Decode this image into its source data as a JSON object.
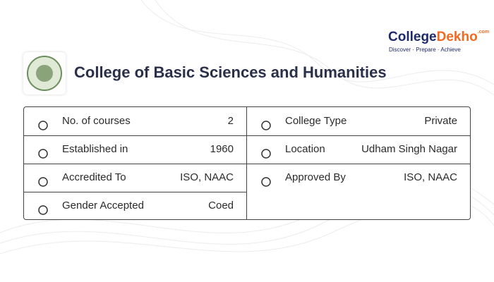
{
  "brand": {
    "name_a": "College",
    "name_b": "Dekho",
    "suffix": ".com",
    "tagline": "Discover · Prepare · Achieve"
  },
  "title": "College of Basic Sciences and Humanities",
  "table": {
    "left": [
      {
        "label": "No. of courses",
        "value": 2
      },
      {
        "label": "Established in",
        "value": 1960
      },
      {
        "label": "Accredited To",
        "value": "ISO, NAAC"
      },
      {
        "label": "Gender Accepted",
        "value": "Coed"
      }
    ],
    "right": [
      {
        "label": "College Type",
        "value": "Private"
      },
      {
        "label": "Location",
        "value": "Udham Singh Nagar"
      },
      {
        "label": "Approved By",
        "value": "ISO, NAAC"
      }
    ]
  }
}
